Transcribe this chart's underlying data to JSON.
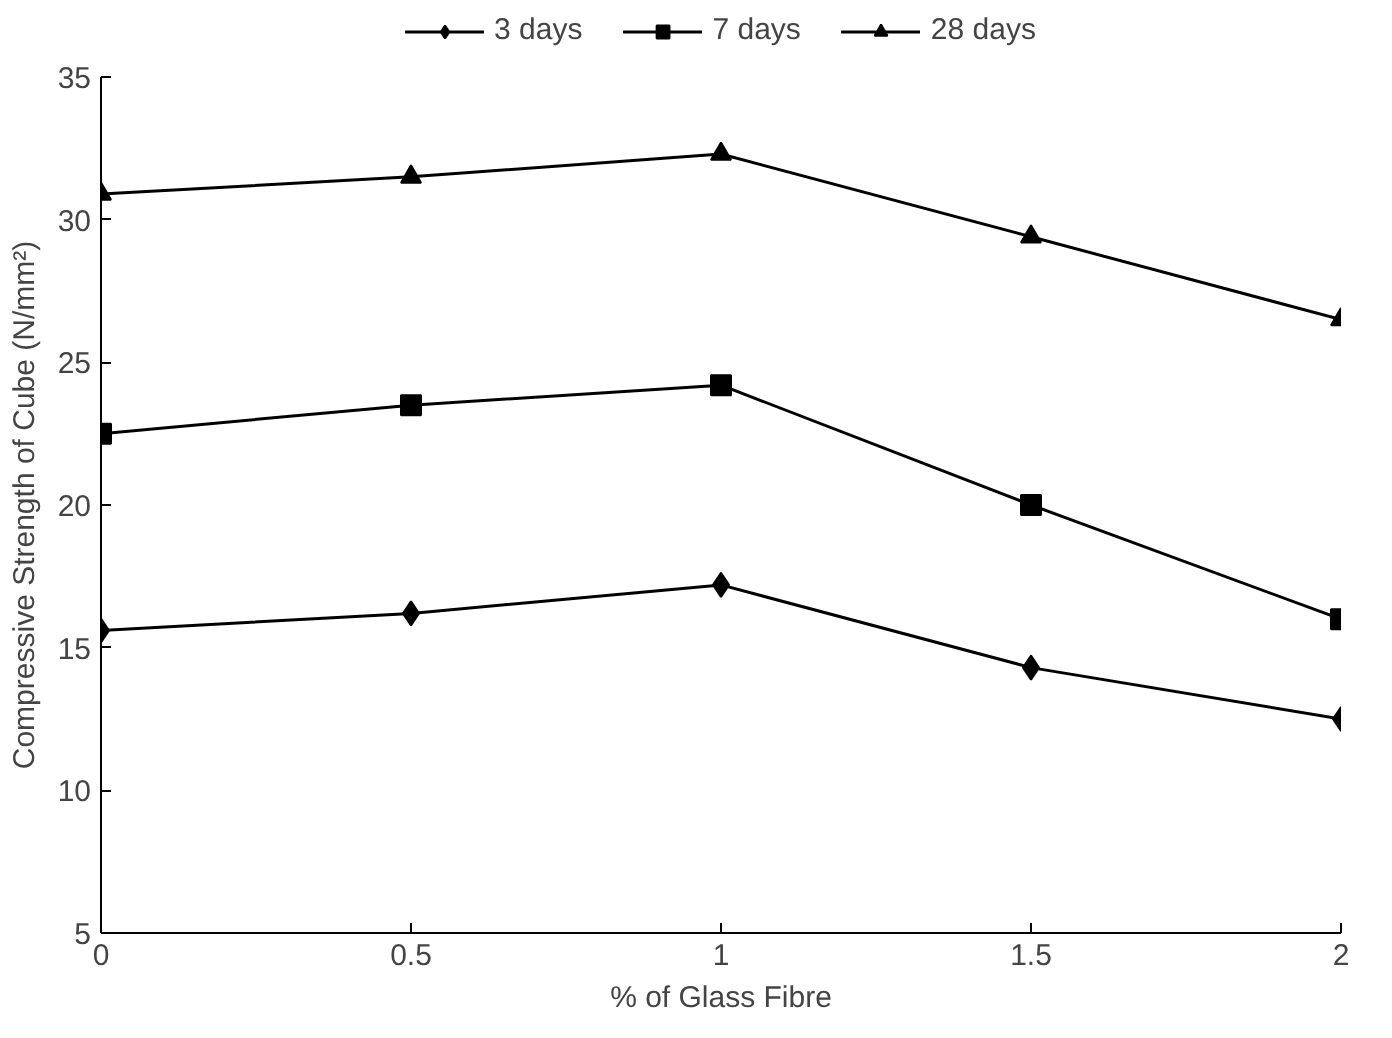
{
  "chart_data": {
    "type": "line",
    "xlabel": "% of Glass Fibre",
    "ylabel": "Compressive Strength of Cube (N/mm²)",
    "x": [
      0,
      0.5,
      1,
      1.5,
      2
    ],
    "series": [
      {
        "name": "3 days",
        "color": "#000000",
        "marker": "diamond",
        "values": [
          15.6,
          16.2,
          17.2,
          14.3,
          12.5
        ]
      },
      {
        "name": "7 days",
        "color": "#000000",
        "marker": "square",
        "values": [
          22.5,
          23.5,
          24.2,
          20.0,
          16.0
        ]
      },
      {
        "name": "28 days",
        "color": "#000000",
        "marker": "triangle",
        "values": [
          30.9,
          31.5,
          32.3,
          29.4,
          26.5
        ]
      }
    ],
    "xlim": [
      0,
      2
    ],
    "xticks": [
      0,
      0.5,
      1,
      1.5,
      2
    ],
    "ylim": [
      5,
      35
    ],
    "yticks": [
      5,
      10,
      15,
      20,
      25,
      30,
      35
    ],
    "grid": false,
    "legend": "top",
    "line_style": "solid"
  }
}
